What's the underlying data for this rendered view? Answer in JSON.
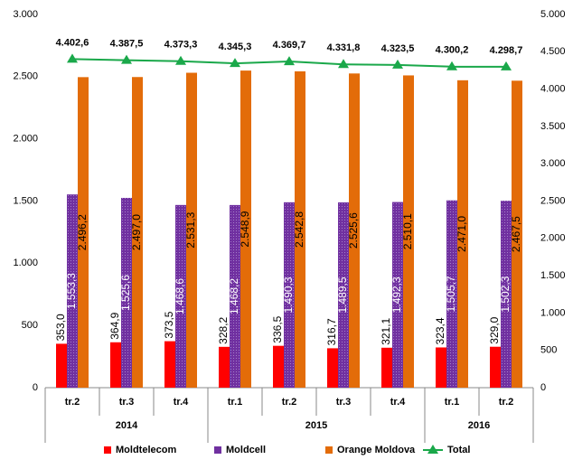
{
  "chart_data": {
    "type": "bar",
    "categories": [
      "tr.2",
      "tr.3",
      "tr.4",
      "tr.1",
      "tr.2",
      "tr.3",
      "tr.4",
      "tr.1",
      "tr.2"
    ],
    "groups": [
      {
        "name": "2014",
        "count": 3
      },
      {
        "name": "2015",
        "count": 4
      },
      {
        "name": "2016",
        "count": 2
      }
    ],
    "series": [
      {
        "name": "Moldtelecom",
        "color": "#ff0000",
        "type": "bar",
        "values": [
          353.0,
          364.9,
          373.5,
          328.2,
          336.5,
          316.7,
          321.1,
          323.4,
          329.0
        ],
        "value_labels": [
          "353,0",
          "364,9",
          "373,5",
          "328,2",
          "336,5",
          "316,7",
          "321,1",
          "323,4",
          "329,0"
        ]
      },
      {
        "name": "Moldcell",
        "color": "#7030a0",
        "type": "bar",
        "values": [
          1553.3,
          1525.6,
          1468.6,
          1468.2,
          1490.3,
          1489.5,
          1492.3,
          1505.7,
          1502.3
        ],
        "value_labels": [
          "1.553,3",
          "1.525,6",
          "1.468,6",
          "1.468,2",
          "1.490,3",
          "1.489,5",
          "1.492,3",
          "1.505,7",
          "1.502,3"
        ]
      },
      {
        "name": "Orange Moldova",
        "color": "#e36c09",
        "type": "bar",
        "values": [
          2496.2,
          2497.0,
          2531.3,
          2548.9,
          2542.8,
          2525.6,
          2510.1,
          2471.0,
          2467.5
        ],
        "value_labels": [
          "2.496,2",
          "2.497,0",
          "2.531,3",
          "2.548,9",
          "2.542,8",
          "2.525,6",
          "2.510,1",
          "2.471,0",
          "2.467,5"
        ]
      },
      {
        "name": "Total",
        "color": "#1aa84a",
        "type": "line",
        "axis": "y2",
        "values": [
          4402.6,
          4387.5,
          4373.3,
          4345.3,
          4369.7,
          4331.8,
          4323.5,
          4300.2,
          4298.7
        ],
        "value_labels": [
          "4.402,6",
          "4.387,5",
          "4.373,3",
          "4.345,3",
          "4.369,7",
          "4.331,8",
          "4.323,5",
          "4.300,2",
          "4.298,7"
        ]
      }
    ],
    "ylim": [
      0,
      3000
    ],
    "yticks": [
      0,
      500,
      {
        "value": 1000,
        "label": "1.000"
      },
      {
        "value": 1500,
        "label": "1.500"
      },
      {
        "value": 2000,
        "label": "2.000"
      },
      {
        "value": 2500,
        "label": "2.500"
      },
      {
        "value": 3000,
        "label": "3.000"
      }
    ],
    "y2lim": [
      0,
      5000
    ],
    "y2ticks": [
      0,
      500,
      {
        "value": 1000,
        "label": "1.000"
      },
      {
        "value": 1500,
        "label": "1.500"
      },
      {
        "value": 2000,
        "label": "2.000"
      },
      {
        "value": 2500,
        "label": "2.500"
      },
      {
        "value": 3000,
        "label": "3.000"
      },
      {
        "value": 3500,
        "label": "3.500"
      },
      {
        "value": 4000,
        "label": "4.000"
      },
      {
        "value": 4500,
        "label": "4.500"
      },
      {
        "value": 5000,
        "label": "5.000"
      }
    ],
    "legend": "bottom"
  }
}
